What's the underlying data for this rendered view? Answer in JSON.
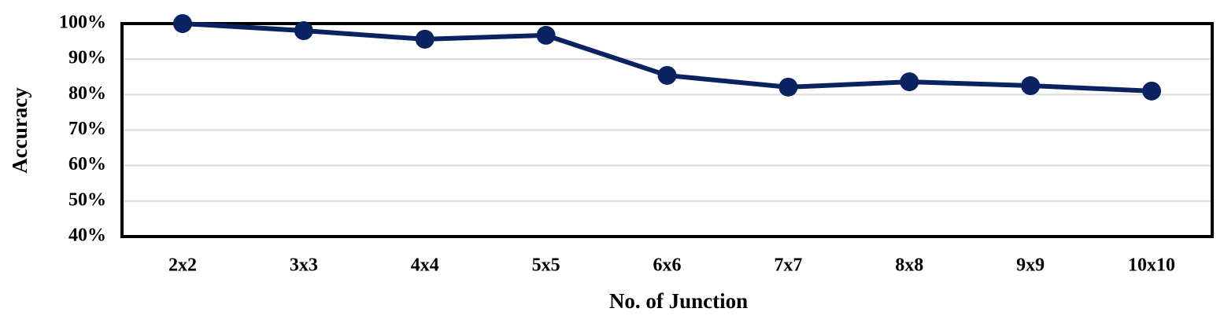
{
  "chart_data": {
    "type": "line",
    "x_label": "No. of Junction",
    "y_label": "Accuracy",
    "categories": [
      "2x2",
      "3x3",
      "4x4",
      "5x5",
      "6x6",
      "7x7",
      "8x8",
      "9x9",
      "10x10"
    ],
    "values": [
      100,
      98,
      95.6,
      96.7,
      85.4,
      82.1,
      83.6,
      82.5,
      81
    ],
    "color": "#0b2260",
    "ylim": [
      40,
      100
    ],
    "yticks": [
      {
        "value": 40,
        "label": "40%"
      },
      {
        "value": 50,
        "label": "50%"
      },
      {
        "value": 60,
        "label": "60%"
      },
      {
        "value": 70,
        "label": "70%"
      },
      {
        "value": 80,
        "label": "80%"
      },
      {
        "value": 90,
        "label": "90%"
      },
      {
        "value": 100,
        "label": "100%"
      }
    ],
    "grid": true
  }
}
